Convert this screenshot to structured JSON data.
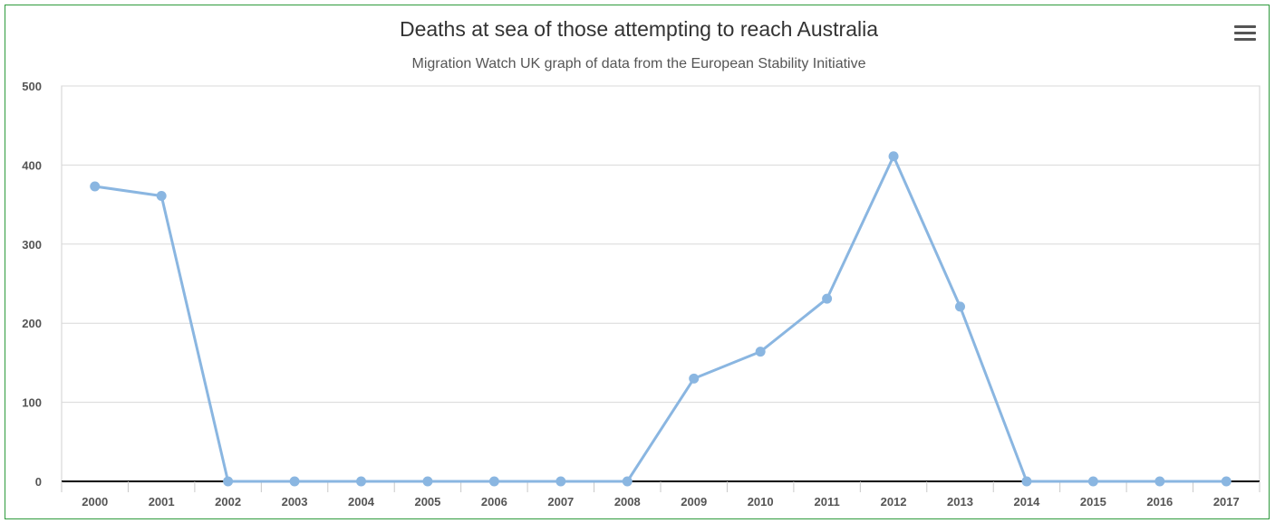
{
  "chart_data": {
    "type": "line",
    "title": "Deaths at sea of those attempting to reach Australia",
    "subtitle": "Migration Watch UK graph of data from the European Stability Initiative",
    "xlabel": "",
    "ylabel": "",
    "categories": [
      "2000",
      "2001",
      "2002",
      "2003",
      "2004",
      "2005",
      "2006",
      "2007",
      "2008",
      "2009",
      "2010",
      "2011",
      "2012",
      "2013",
      "2014",
      "2015",
      "2016",
      "2017"
    ],
    "series": [
      {
        "values": [
          373,
          361,
          0,
          0,
          0,
          0,
          0,
          0,
          0,
          130,
          164,
          231,
          411,
          221,
          0,
          0,
          0,
          0
        ]
      }
    ],
    "ylim": [
      0,
      500
    ],
    "yticks": [
      0,
      100,
      200,
      300,
      400,
      500
    ],
    "grid": "horizontal",
    "legend": "none",
    "series_color": "#8ab6e1",
    "grid_color": "#d8d8d8",
    "axis_color": "#000000"
  },
  "menu": {
    "icon": "hamburger-menu-icon"
  }
}
